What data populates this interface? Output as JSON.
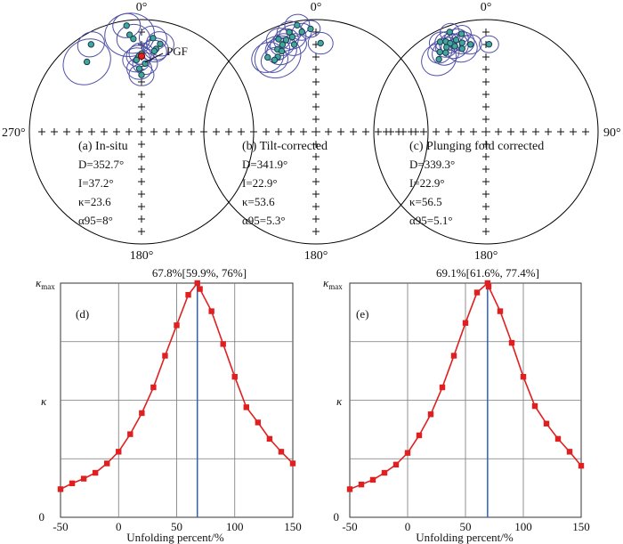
{
  "stereonets": [
    {
      "panel_label": "(a) In-situ",
      "north_label": "0°",
      "south_label": "180°",
      "west_label": "270°",
      "east_label": "",
      "D": "D=352.7°",
      "I": "I=37.2°",
      "kappa": "κ=23.6",
      "alpha95": "α95=8°",
      "pgf_label": "PGF",
      "sites": [
        {
          "dec": 352,
          "inc": 5,
          "a95": 10
        },
        {
          "dec": 7,
          "inc": 17,
          "a95": 10
        },
        {
          "dec": 330,
          "inc": 11,
          "a95": 10
        },
        {
          "dec": 353,
          "inc": 14,
          "a95": 18
        },
        {
          "dec": 355,
          "inc": 18,
          "a95": 12
        },
        {
          "dec": 322,
          "inc": 22,
          "a95": 18
        },
        {
          "dec": 12,
          "inc": 21,
          "a95": 10
        },
        {
          "dec": 10,
          "inc": 26,
          "a95": 9
        },
        {
          "dec": 9,
          "inc": 28,
          "a95": 9
        },
        {
          "dec": 0,
          "inc": 31,
          "a95": 9
        },
        {
          "dec": 358,
          "inc": 33,
          "a95": 9
        },
        {
          "dec": 356,
          "inc": 36,
          "a95": 10
        },
        {
          "dec": 3,
          "inc": 39,
          "a95": 9
        },
        {
          "dec": 358,
          "inc": 43,
          "a95": 9
        },
        {
          "dec": 0,
          "inc": 48,
          "a95": 9
        }
      ],
      "pgf": {
        "dec": 0,
        "inc": 33
      }
    },
    {
      "panel_label": "(b) Tilt-corrected",
      "north_label": "0°",
      "south_label": "180°",
      "west_label": "",
      "east_label": "",
      "D": "D=341.9°",
      "I": "I=22.9°",
      "kappa": "κ=53.6",
      "alpha95": "α95=5.3°",
      "sites": [
        {
          "dec": 350,
          "inc": 4,
          "a95": 9
        },
        {
          "dec": 345,
          "inc": 9,
          "a95": 9
        },
        {
          "dec": 352,
          "inc": 11,
          "a95": 7
        },
        {
          "dec": 338,
          "inc": 12,
          "a95": 9
        },
        {
          "dec": 346,
          "inc": 14,
          "a95": 10
        },
        {
          "dec": 342,
          "inc": 15,
          "a95": 9
        },
        {
          "dec": 339,
          "inc": 18,
          "a95": 9
        },
        {
          "dec": 335,
          "inc": 20,
          "a95": 9
        },
        {
          "dec": 346,
          "inc": 21,
          "a95": 9
        },
        {
          "dec": 327,
          "inc": 22,
          "a95": 12
        },
        {
          "dec": 337,
          "inc": 23,
          "a95": 11
        },
        {
          "dec": 333,
          "inc": 26,
          "a95": 17
        },
        {
          "dec": 3,
          "inc": 22,
          "a95": 9
        },
        {
          "dec": 330,
          "inc": 27,
          "a95": 10
        },
        {
          "dec": 357,
          "inc": 9,
          "a95": 7
        }
      ]
    },
    {
      "panel_label": "(c) Plunging fold corrected",
      "north_label": "0°",
      "south_label": "180°",
      "west_label": "",
      "east_label": "90°",
      "D": "D=339.3°",
      "I": "I=22.9°",
      "kappa": "κ=56.5",
      "alpha95": "α95=5.1°",
      "sites": [
        {
          "dec": 340,
          "inc": 6,
          "a95": 7
        },
        {
          "dec": 333,
          "inc": 11,
          "a95": 8
        },
        {
          "dec": 346,
          "inc": 11,
          "a95": 7
        },
        {
          "dec": 336,
          "inc": 13,
          "a95": 8
        },
        {
          "dec": 342,
          "inc": 15,
          "a95": 9
        },
        {
          "dec": 338,
          "inc": 16,
          "a95": 8
        },
        {
          "dec": 335,
          "inc": 18,
          "a95": 8
        },
        {
          "dec": 330,
          "inc": 19,
          "a95": 9
        },
        {
          "dec": 345,
          "inc": 19,
          "a95": 9
        },
        {
          "dec": 340,
          "inc": 20,
          "a95": 10
        },
        {
          "dec": 333,
          "inc": 22,
          "a95": 10
        },
        {
          "dec": 327,
          "inc": 24,
          "a95": 13
        },
        {
          "dec": 350,
          "inc": 22,
          "a95": 8
        },
        {
          "dec": 2,
          "inc": 23,
          "a95": 7
        },
        {
          "dec": 344,
          "inc": 24,
          "a95": 11
        }
      ]
    }
  ],
  "chart_data": [
    {
      "type": "line",
      "panel_label": "(d)",
      "title": "67.8%[59.9%, 76%]",
      "xlabel": "Unfolding percent/%",
      "ylabel": "κ",
      "ymax_label": "κmax",
      "y_zero_label": "0",
      "xlim": [
        -50,
        150
      ],
      "x_ticks": [
        -50,
        0,
        50,
        100,
        150
      ],
      "x": [
        -50,
        -40,
        -30,
        -20,
        -10,
        0,
        10,
        20,
        30,
        40,
        50,
        60,
        67.8,
        70,
        80,
        90,
        100,
        110,
        120,
        130,
        140,
        150
      ],
      "y": [
        0.12,
        0.145,
        0.165,
        0.19,
        0.23,
        0.28,
        0.355,
        0.445,
        0.555,
        0.69,
        0.82,
        0.95,
        1.0,
        0.975,
        0.88,
        0.74,
        0.6,
        0.47,
        0.405,
        0.335,
        0.28,
        0.23
      ],
      "peak_x": 67.8
    },
    {
      "type": "line",
      "panel_label": "(e)",
      "title": "69.1%[61.6%, 77.4%]",
      "xlabel": "Unfolding percent/%",
      "ylabel": "κ",
      "ymax_label": "κmax",
      "y_zero_label": "0",
      "xlim": [
        -50,
        150
      ],
      "x_ticks": [
        -50,
        0,
        50,
        100,
        150
      ],
      "x": [
        -50,
        -40,
        -30,
        -20,
        -10,
        0,
        10,
        20,
        30,
        40,
        50,
        60,
        69.1,
        70,
        80,
        90,
        100,
        110,
        120,
        130,
        140,
        150
      ],
      "y": [
        0.12,
        0.14,
        0.16,
        0.19,
        0.225,
        0.275,
        0.35,
        0.44,
        0.555,
        0.69,
        0.83,
        0.96,
        1.0,
        0.985,
        0.88,
        0.745,
        0.6,
        0.475,
        0.4,
        0.335,
        0.28,
        0.22
      ],
      "peak_x": 69.1
    }
  ]
}
